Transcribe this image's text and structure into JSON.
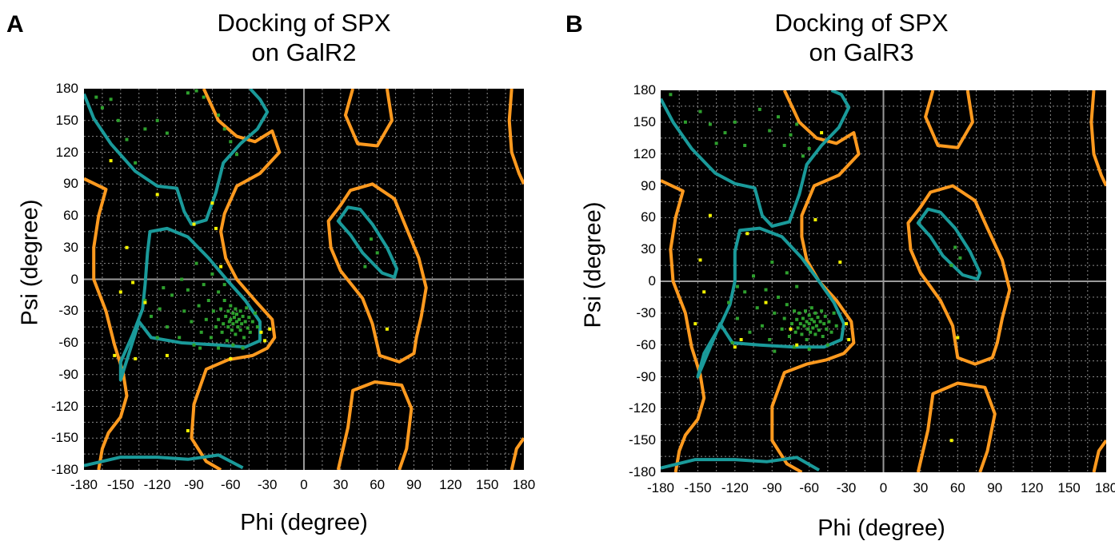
{
  "chart_data": [
    {
      "type": "scatter",
      "panel_label": "A",
      "title": "Docking of SPX on GalR2",
      "title_lines": [
        "Docking of SPX",
        "on GalR2"
      ],
      "xlabel": "Phi (degree)",
      "ylabel": "Psi (degree)",
      "xlim": [
        -180,
        180
      ],
      "ylim": [
        -180,
        180
      ],
      "xticks": [
        -180,
        -150,
        -120,
        -90,
        -60,
        -30,
        0,
        30,
        60,
        90,
        120,
        150,
        180
      ],
      "yticks": [
        180,
        150,
        120,
        90,
        60,
        30,
        0,
        -30,
        -60,
        -90,
        -120,
        -150,
        -180
      ],
      "grid": true,
      "background": "#000000",
      "colors": {
        "core": "#2ea12e",
        "allowed": "#f4f400",
        "core_contour": "#1a9a9a",
        "allowed_contour": "#ff9a1f",
        "axis_lines": "#9a9a9a"
      },
      "series": [
        {
          "role": "core",
          "points": [
            [
              -170,
              172
            ],
            [
              -165,
              162
            ],
            [
              -158,
              170
            ],
            [
              -152,
              150
            ],
            [
              -145,
              132
            ],
            [
              -138,
              110
            ],
            [
              -130,
              142
            ],
            [
              -120,
              150
            ],
            [
              -112,
              138
            ],
            [
              -95,
              176
            ],
            [
              -88,
              178
            ],
            [
              -82,
              172
            ],
            [
              -70,
              155
            ],
            [
              -65,
              142
            ],
            [
              -60,
              130
            ],
            [
              -55,
              118
            ],
            [
              -130,
              -20
            ],
            [
              -125,
              -35
            ],
            [
              -118,
              -28
            ],
            [
              -112,
              -45
            ],
            [
              -108,
              -15
            ],
            [
              -102,
              -55
            ],
            [
              -98,
              -30
            ],
            [
              -95,
              -10
            ],
            [
              -92,
              -40
            ],
            [
              -90,
              -62
            ],
            [
              -86,
              -25
            ],
            [
              -84,
              -50
            ],
            [
              -82,
              -5
            ],
            [
              -80,
              -38
            ],
            [
              -78,
              -20
            ],
            [
              -76,
              -55
            ],
            [
              -74,
              -30
            ],
            [
              -72,
              -45
            ],
            [
              -70,
              -12
            ],
            [
              -70,
              -38
            ],
            [
              -68,
              -28
            ],
            [
              -67,
              -50
            ],
            [
              -66,
              -42
            ],
            [
              -65,
              -20
            ],
            [
              -64,
              -35
            ],
            [
              -63,
              -58
            ],
            [
              -62,
              -30
            ],
            [
              -62,
              -45
            ],
            [
              -61,
              -40
            ],
            [
              -60,
              -25
            ],
            [
              -60,
              -38
            ],
            [
              -59,
              -48
            ],
            [
              -58,
              -32
            ],
            [
              -58,
              -42
            ],
            [
              -57,
              -36
            ],
            [
              -56,
              -28
            ],
            [
              -56,
              -52
            ],
            [
              -55,
              -40
            ],
            [
              -55,
              -33
            ],
            [
              -54,
              -45
            ],
            [
              -53,
              -38
            ],
            [
              -52,
              -30
            ],
            [
              -52,
              -48
            ],
            [
              -51,
              -42
            ],
            [
              -50,
              -35
            ],
            [
              -49,
              -55
            ],
            [
              -48,
              -40
            ],
            [
              -47,
              -27
            ],
            [
              -46,
              -46
            ],
            [
              -45,
              -36
            ],
            [
              -44,
              -50
            ],
            [
              -42,
              -40
            ],
            [
              -40,
              -32
            ],
            [
              -38,
              -45
            ],
            [
              -65,
              -5
            ],
            [
              -75,
              5
            ],
            [
              -88,
              15
            ],
            [
              -100,
              0
            ],
            [
              -115,
              -8
            ],
            [
              -120,
              -55
            ],
            [
              -85,
              -65
            ],
            [
              -58,
              -62
            ],
            [
              -50,
              -65
            ],
            [
              -70,
              -65
            ],
            [
              55,
              38
            ],
            [
              60,
              25
            ],
            [
              50,
              12
            ]
          ]
        },
        {
          "role": "allowed",
          "points": [
            [
              -158,
              112
            ],
            [
              -120,
              80
            ],
            [
              -145,
              30
            ],
            [
              -140,
              -3
            ],
            [
              -150,
              -12
            ],
            [
              -130,
              -22
            ],
            [
              -155,
              -72
            ],
            [
              -138,
              -75
            ],
            [
              -112,
              -72
            ],
            [
              -90,
              52
            ],
            [
              -75,
              72
            ],
            [
              -72,
              48
            ],
            [
              -68,
              12
            ],
            [
              -35,
              -50
            ],
            [
              -32,
              -58
            ],
            [
              -28,
              -47
            ],
            [
              -60,
              -75
            ],
            [
              -95,
              -143
            ],
            [
              68,
              -47
            ]
          ]
        }
      ]
    },
    {
      "type": "scatter",
      "panel_label": "B",
      "title": "Docking of SPX on GalR3",
      "title_lines": [
        "Docking of SPX",
        "on GalR3"
      ],
      "xlabel": "Phi (degree)",
      "ylabel": "Psi (degree)",
      "xlim": [
        -180,
        180
      ],
      "ylim": [
        -180,
        180
      ],
      "xticks": [
        -180,
        -150,
        -120,
        -90,
        -60,
        -30,
        0,
        30,
        60,
        90,
        120,
        150,
        180
      ],
      "yticks": [
        180,
        150,
        120,
        90,
        60,
        30,
        0,
        -30,
        -60,
        -90,
        -120,
        -150,
        -180
      ],
      "grid": true,
      "background": "#000000",
      "colors": {
        "core": "#2ea12e",
        "allowed": "#f4f400",
        "core_contour": "#1a9a9a",
        "allowed_contour": "#ff9a1f",
        "axis_lines": "#9a9a9a"
      },
      "series": [
        {
          "role": "core",
          "points": [
            [
              -172,
              176
            ],
            [
              -160,
              150
            ],
            [
              -148,
              160
            ],
            [
              -140,
              148
            ],
            [
              -135,
              130
            ],
            [
              -128,
              140
            ],
            [
              -120,
              150
            ],
            [
              -112,
              128
            ],
            [
              -100,
              162
            ],
            [
              -92,
              142
            ],
            [
              -85,
              155
            ],
            [
              -80,
              128
            ],
            [
              -75,
              138
            ],
            [
              -70,
              148
            ],
            [
              -65,
              118
            ],
            [
              -60,
              125
            ],
            [
              -125,
              -20
            ],
            [
              -118,
              -35
            ],
            [
              -112,
              -10
            ],
            [
              -108,
              -48
            ],
            [
              -102,
              -25
            ],
            [
              -98,
              -42
            ],
            [
              -95,
              -8
            ],
            [
              -92,
              -55
            ],
            [
              -88,
              -30
            ],
            [
              -85,
              -15
            ],
            [
              -82,
              -45
            ],
            [
              -80,
              -35
            ],
            [
              -78,
              -22
            ],
            [
              -76,
              -52
            ],
            [
              -74,
              -40
            ],
            [
              -72,
              -28
            ],
            [
              -71,
              -48
            ],
            [
              -70,
              -36
            ],
            [
              -69,
              -44
            ],
            [
              -68,
              -30
            ],
            [
              -67,
              -40
            ],
            [
              -66,
              -50
            ],
            [
              -65,
              -35
            ],
            [
              -64,
              -42
            ],
            [
              -63,
              -28
            ],
            [
              -62,
              -38
            ],
            [
              -62,
              -55
            ],
            [
              -61,
              -45
            ],
            [
              -60,
              -32
            ],
            [
              -60,
              -40
            ],
            [
              -59,
              -48
            ],
            [
              -58,
              -36
            ],
            [
              -58,
              -25
            ],
            [
              -57,
              -44
            ],
            [
              -56,
              -38
            ],
            [
              -55,
              -30
            ],
            [
              -55,
              -50
            ],
            [
              -54,
              -42
            ],
            [
              -53,
              -34
            ],
            [
              -52,
              -46
            ],
            [
              -51,
              -38
            ],
            [
              -50,
              -28
            ],
            [
              -49,
              -52
            ],
            [
              -48,
              -40
            ],
            [
              -47,
              -33
            ],
            [
              -46,
              -45
            ],
            [
              -44,
              -38
            ],
            [
              -42,
              -48
            ],
            [
              -40,
              -30
            ],
            [
              -38,
              -42
            ],
            [
              -70,
              -5
            ],
            [
              -78,
              8
            ],
            [
              -90,
              18
            ],
            [
              -105,
              5
            ],
            [
              -118,
              -5
            ],
            [
              -122,
              -58
            ],
            [
              -88,
              -66
            ],
            [
              -60,
              -64
            ],
            [
              -45,
              -60
            ],
            [
              -72,
              -62
            ],
            [
              58,
              32
            ],
            [
              62,
              22
            ],
            [
              55,
              15
            ]
          ]
        },
        {
          "role": "allowed",
          "points": [
            [
              -50,
              140
            ],
            [
              -55,
              58
            ],
            [
              -140,
              62
            ],
            [
              -148,
              20
            ],
            [
              -152,
              -40
            ],
            [
              -145,
              -10
            ],
            [
              -120,
              -62
            ],
            [
              -115,
              -55
            ],
            [
              -110,
              45
            ],
            [
              -95,
              -20
            ],
            [
              -75,
              -45
            ],
            [
              -70,
              -60
            ],
            [
              -35,
              18
            ],
            [
              -30,
              -40
            ],
            [
              -28,
              -55
            ],
            [
              60,
              -53
            ],
            [
              55,
              -150
            ]
          ]
        }
      ]
    }
  ]
}
